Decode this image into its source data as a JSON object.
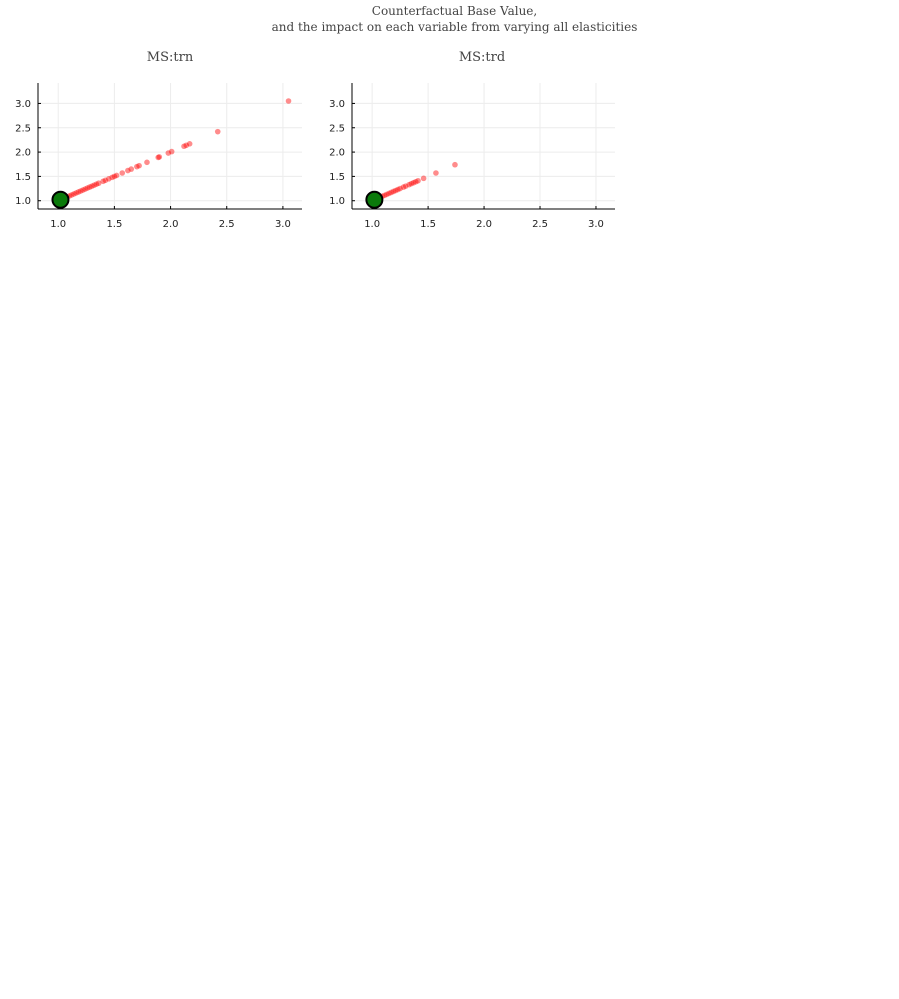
{
  "figure": {
    "title_line1": "Counterfactual Base Value,",
    "title_line2": "and the impact on each variable from varying all elasticities"
  },
  "colors": {
    "points": "#ff0000",
    "base": "#0a7a0a",
    "base_outline": "#000000",
    "grid": "#ececec",
    "axis": "#000000"
  },
  "chart_data": [
    {
      "type": "scatter",
      "title": "MS:trn",
      "xlabel": "",
      "ylabel": "",
      "xlim": [
        0.82,
        3.17
      ],
      "ylim": [
        0.83,
        3.42
      ],
      "xticks": [
        "1.0",
        "1.5",
        "2.0",
        "2.5",
        "3.0"
      ],
      "yticks": [
        "1.0",
        "1.5",
        "2.0",
        "2.5",
        "3.0"
      ],
      "grid": true,
      "base_point": {
        "x": 1.02,
        "y": 1.02
      },
      "points": [
        {
          "x": 1.02,
          "y": 1.02
        },
        {
          "x": 1.04,
          "y": 1.04
        },
        {
          "x": 1.06,
          "y": 1.06
        },
        {
          "x": 1.08,
          "y": 1.08
        },
        {
          "x": 1.1,
          "y": 1.1
        },
        {
          "x": 1.12,
          "y": 1.12
        },
        {
          "x": 1.14,
          "y": 1.14
        },
        {
          "x": 1.16,
          "y": 1.16
        },
        {
          "x": 1.18,
          "y": 1.18
        },
        {
          "x": 1.2,
          "y": 1.2
        },
        {
          "x": 1.22,
          "y": 1.22
        },
        {
          "x": 1.24,
          "y": 1.24
        },
        {
          "x": 1.26,
          "y": 1.26
        },
        {
          "x": 1.28,
          "y": 1.28
        },
        {
          "x": 1.3,
          "y": 1.3
        },
        {
          "x": 1.32,
          "y": 1.32
        },
        {
          "x": 1.34,
          "y": 1.34
        },
        {
          "x": 1.36,
          "y": 1.36
        },
        {
          "x": 1.4,
          "y": 1.4
        },
        {
          "x": 1.42,
          "y": 1.42
        },
        {
          "x": 1.45,
          "y": 1.45
        },
        {
          "x": 1.48,
          "y": 1.48
        },
        {
          "x": 1.5,
          "y": 1.5
        },
        {
          "x": 1.52,
          "y": 1.52
        },
        {
          "x": 1.57,
          "y": 1.57
        },
        {
          "x": 1.62,
          "y": 1.62
        },
        {
          "x": 1.65,
          "y": 1.65
        },
        {
          "x": 1.7,
          "y": 1.7
        },
        {
          "x": 1.72,
          "y": 1.72
        },
        {
          "x": 1.79,
          "y": 1.79
        },
        {
          "x": 1.89,
          "y": 1.89
        },
        {
          "x": 1.9,
          "y": 1.9
        },
        {
          "x": 1.98,
          "y": 1.98
        },
        {
          "x": 2.01,
          "y": 2.01
        },
        {
          "x": 2.12,
          "y": 2.12
        },
        {
          "x": 2.14,
          "y": 2.14
        },
        {
          "x": 2.17,
          "y": 2.17
        },
        {
          "x": 2.42,
          "y": 2.42
        },
        {
          "x": 3.05,
          "y": 3.05
        }
      ]
    },
    {
      "type": "scatter",
      "title": "MS:trd",
      "xlabel": "",
      "ylabel": "",
      "xlim": [
        0.82,
        3.17
      ],
      "ylim": [
        0.83,
        3.42
      ],
      "xticks": [
        "1.0",
        "1.5",
        "2.0",
        "2.5",
        "3.0"
      ],
      "yticks": [
        "1.0",
        "1.5",
        "2.0",
        "2.5",
        "3.0"
      ],
      "grid": true,
      "base_point": {
        "x": 1.02,
        "y": 1.02
      },
      "points": [
        {
          "x": 0.97,
          "y": 0.97
        },
        {
          "x": 0.99,
          "y": 0.99
        },
        {
          "x": 1.01,
          "y": 1.01
        },
        {
          "x": 1.03,
          "y": 1.03
        },
        {
          "x": 1.05,
          "y": 1.05
        },
        {
          "x": 1.07,
          "y": 1.07
        },
        {
          "x": 1.09,
          "y": 1.09
        },
        {
          "x": 1.11,
          "y": 1.11
        },
        {
          "x": 1.13,
          "y": 1.13
        },
        {
          "x": 1.15,
          "y": 1.15
        },
        {
          "x": 1.17,
          "y": 1.17
        },
        {
          "x": 1.19,
          "y": 1.19
        },
        {
          "x": 1.21,
          "y": 1.21
        },
        {
          "x": 1.23,
          "y": 1.23
        },
        {
          "x": 1.25,
          "y": 1.25
        },
        {
          "x": 1.28,
          "y": 1.28
        },
        {
          "x": 1.3,
          "y": 1.3
        },
        {
          "x": 1.33,
          "y": 1.33
        },
        {
          "x": 1.35,
          "y": 1.35
        },
        {
          "x": 1.37,
          "y": 1.37
        },
        {
          "x": 1.39,
          "y": 1.39
        },
        {
          "x": 1.41,
          "y": 1.41
        },
        {
          "x": 1.46,
          "y": 1.46
        },
        {
          "x": 1.57,
          "y": 1.57
        },
        {
          "x": 1.74,
          "y": 1.74
        }
      ]
    }
  ]
}
